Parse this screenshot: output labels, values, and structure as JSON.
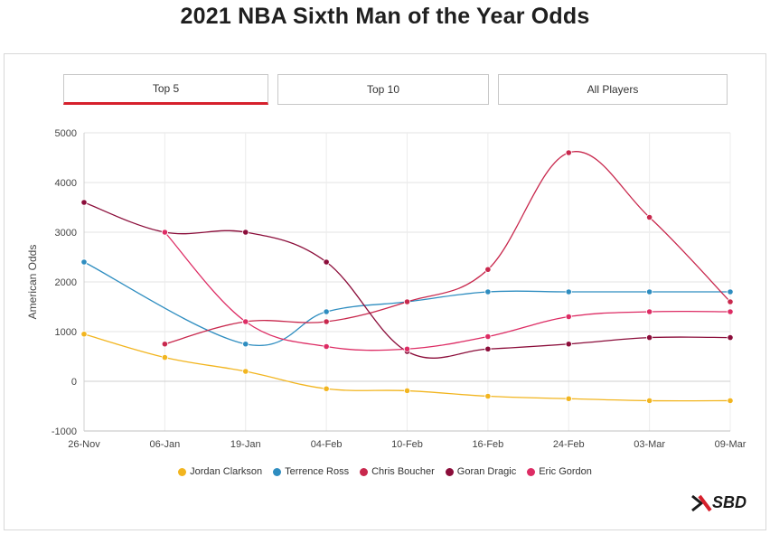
{
  "title": "2021 NBA Sixth Man of the Year Odds",
  "tabs": [
    {
      "label": "Top 5",
      "active": true
    },
    {
      "label": "Top 10",
      "active": false
    },
    {
      "label": "All Players",
      "active": false
    }
  ],
  "brand": {
    "logo_text": "SBD",
    "accent": "#d6202c"
  },
  "chart_data": {
    "type": "line",
    "title": "2021 NBA Sixth Man of the Year Odds",
    "xlabel": "",
    "ylabel": "American Odds",
    "categories": [
      "26-Nov",
      "06-Jan",
      "19-Jan",
      "04-Feb",
      "10-Feb",
      "16-Feb",
      "24-Feb",
      "03-Mar",
      "09-Mar"
    ],
    "ylim": [
      -1000,
      5000
    ],
    "yticks": [
      -1000,
      0,
      1000,
      2000,
      3000,
      4000,
      5000
    ],
    "grid": true,
    "legend_position": "bottom",
    "series": [
      {
        "name": "Jordan Clarkson",
        "color": "#f2b51f",
        "values": [
          950,
          480,
          200,
          -150,
          -190,
          -300,
          -350,
          -390,
          -390
        ]
      },
      {
        "name": "Terrence Ross",
        "color": "#2e8dc0",
        "values": [
          2400,
          null,
          750,
          1400,
          1600,
          1800,
          1800,
          1800,
          1800
        ]
      },
      {
        "name": "Chris Boucher",
        "color": "#c8284d",
        "values": [
          null,
          750,
          1200,
          1200,
          1600,
          2250,
          4600,
          3300,
          1600
        ]
      },
      {
        "name": "Goran Dragic",
        "color": "#8b0d3a",
        "values": [
          3600,
          3000,
          3000,
          2400,
          600,
          650,
          750,
          880,
          880
        ]
      },
      {
        "name": "Eric Gordon",
        "color": "#dd2c64",
        "values": [
          null,
          3000,
          1200,
          700,
          650,
          900,
          1300,
          1400,
          1400
        ]
      }
    ]
  }
}
